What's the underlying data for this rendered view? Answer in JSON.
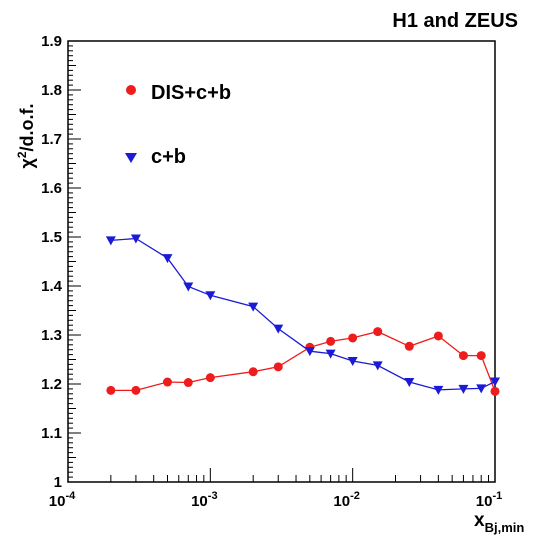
{
  "chart_data": {
    "type": "line",
    "title": "H1 and ZEUS",
    "ylabel_main": "χ",
    "ylabel_sup": "2",
    "ylabel_rest": "/d.o.f.",
    "xlabel_main": "x",
    "xlabel_sub": "Bj,min",
    "xscale": "log",
    "xlim": [
      0.0001,
      0.1
    ],
    "ylim": [
      1.0,
      1.9
    ],
    "grid": false,
    "legend_position": "top-left",
    "yticks": [
      "1",
      "1.1",
      "1.2",
      "1.3",
      "1.4",
      "1.5",
      "1.6",
      "1.7",
      "1.8",
      "1.9"
    ],
    "xticks": [
      {
        "base": "10",
        "exp": "-4"
      },
      {
        "base": "10",
        "exp": "-3"
      },
      {
        "base": "10",
        "exp": "-2"
      },
      {
        "base": "10",
        "exp": "-1"
      }
    ],
    "series": [
      {
        "name": "DIS+c+b",
        "color": "#ee1c1c",
        "marker": "circle",
        "x": [
          0.0002,
          0.0003,
          0.0005,
          0.0007,
          0.001,
          0.002,
          0.003,
          0.005,
          0.007,
          0.01,
          0.015,
          0.025,
          0.04,
          0.06,
          0.08,
          0.1
        ],
        "y": [
          1.187,
          1.187,
          1.204,
          1.203,
          1.213,
          1.225,
          1.235,
          1.275,
          1.287,
          1.294,
          1.307,
          1.277,
          1.298,
          1.258,
          1.258,
          1.185
        ]
      },
      {
        "name": "c+b",
        "color": "#1b1bd6",
        "marker": "triangle-down",
        "x": [
          0.0002,
          0.0003,
          0.0005,
          0.0007,
          0.001,
          0.002,
          0.003,
          0.005,
          0.007,
          0.01,
          0.015,
          0.025,
          0.04,
          0.06,
          0.08,
          0.1
        ],
        "y": [
          1.493,
          1.497,
          1.457,
          1.399,
          1.381,
          1.358,
          1.313,
          1.267,
          1.262,
          1.247,
          1.238,
          1.204,
          1.188,
          1.19,
          1.191,
          1.205
        ]
      }
    ]
  }
}
